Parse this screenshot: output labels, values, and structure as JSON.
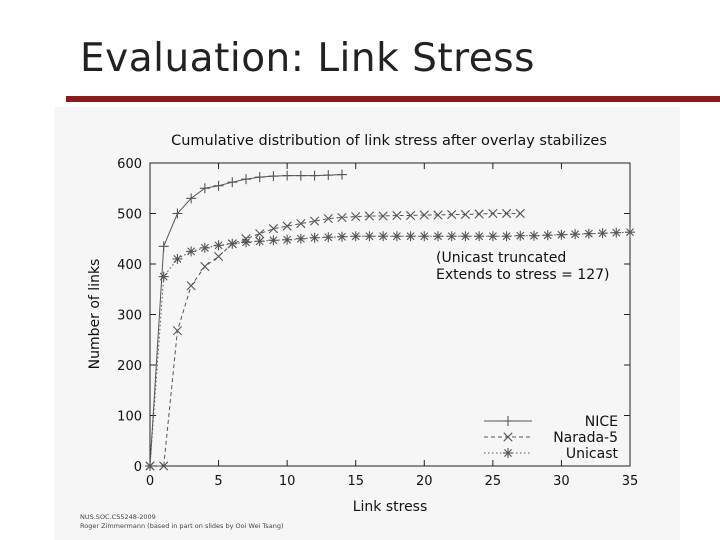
{
  "slide": {
    "title": "Evaluation: Link Stress",
    "footer_line1": "NUS.SOC.CS5248-2009",
    "footer_line2": "Roger Zimmermann (based in part on slides by Ooi Wei Tsang)"
  },
  "colors": {
    "rule": "#8b1c1c",
    "series_stroke": "#555555"
  },
  "chart_data": {
    "type": "line",
    "title": "Cumulative distribution of link stress after overlay stabilizes",
    "xlabel": "Link stress",
    "ylabel": "Number of links",
    "xlim": [
      0,
      35
    ],
    "ylim": [
      0,
      600
    ],
    "xticks": [
      0,
      5,
      10,
      15,
      20,
      25,
      30,
      35
    ],
    "yticks": [
      0,
      100,
      200,
      300,
      400,
      500,
      600
    ],
    "grid": false,
    "legend_position": "bottom-right",
    "annotation": [
      "(Unicast truncated",
      "Extends to stress = 127)"
    ],
    "series": [
      {
        "name": "NICE",
        "marker": "plus",
        "dash": "solid",
        "x": [
          0,
          1,
          2,
          3,
          4,
          5,
          6,
          7,
          8,
          9,
          10,
          11,
          12,
          13,
          14
        ],
        "y": [
          0,
          435,
          500,
          530,
          550,
          555,
          562,
          568,
          572,
          574,
          575,
          575,
          575,
          576,
          577
        ]
      },
      {
        "name": "Narada-5",
        "marker": "x",
        "dash": "dashed",
        "x": [
          0,
          1,
          2,
          3,
          4,
          5,
          6,
          7,
          8,
          9,
          10,
          11,
          12,
          13,
          14,
          15,
          16,
          17,
          18,
          19,
          20,
          21,
          22,
          23,
          24,
          25,
          26,
          27
        ],
        "y": [
          0,
          0,
          268,
          357,
          395,
          415,
          440,
          450,
          460,
          470,
          475,
          480,
          485,
          490,
          492,
          494,
          495,
          495,
          496,
          496,
          497,
          497,
          498,
          498,
          499,
          500,
          500,
          500
        ]
      },
      {
        "name": "Unicast",
        "marker": "star",
        "dash": "dotted",
        "x": [
          0,
          1,
          2,
          3,
          4,
          5,
          6,
          7,
          8,
          9,
          10,
          11,
          12,
          13,
          14,
          15,
          16,
          17,
          18,
          19,
          20,
          21,
          22,
          23,
          24,
          25,
          26,
          27,
          28,
          29,
          30,
          31,
          32,
          33,
          34,
          35
        ],
        "y": [
          0,
          375,
          410,
          425,
          432,
          437,
          440,
          443,
          445,
          447,
          448,
          450,
          452,
          453,
          454,
          455,
          455,
          455,
          455,
          455,
          455,
          455,
          455,
          455,
          455,
          455,
          455,
          456,
          456,
          457,
          458,
          459,
          460,
          461,
          462,
          463
        ]
      }
    ]
  }
}
